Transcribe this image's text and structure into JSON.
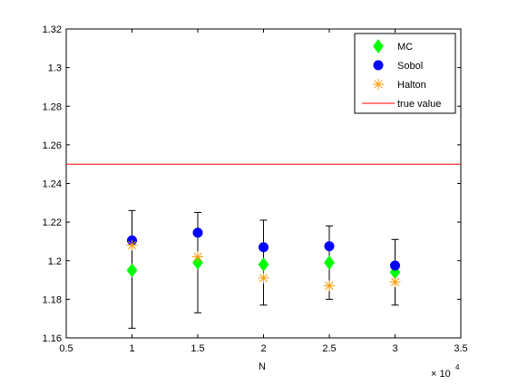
{
  "chart_data": {
    "type": "scatter",
    "xlabel": "N",
    "x_multiplier_label": "× 10",
    "x_multiplier_exponent": "4",
    "xlim": [
      0.5,
      3.5
    ],
    "ylim": [
      1.16,
      1.32
    ],
    "x_ticks": [
      "0.5",
      "1",
      "1.5",
      "2",
      "2.5",
      "3",
      "3.5"
    ],
    "y_ticks": [
      "1.16",
      "1.18",
      "1.2",
      "1.22",
      "1.24",
      "1.26",
      "1.28",
      "1.3",
      "1.32"
    ],
    "grid": false,
    "legend_position": "top-right",
    "error_bars": [
      {
        "x": 1.0,
        "low": 1.165,
        "high": 1.226
      },
      {
        "x": 1.5,
        "low": 1.173,
        "high": 1.225
      },
      {
        "x": 2.0,
        "low": 1.177,
        "high": 1.221
      },
      {
        "x": 2.5,
        "low": 1.18,
        "high": 1.218
      },
      {
        "x": 3.0,
        "low": 1.177,
        "high": 1.211
      }
    ],
    "series": [
      {
        "name": "MC",
        "marker": "diamond",
        "color": "#00ff00",
        "x": [
          1.0,
          1.5,
          2.0,
          2.5,
          3.0
        ],
        "y": [
          1.195,
          1.199,
          1.198,
          1.199,
          1.194
        ]
      },
      {
        "name": "Sobol",
        "marker": "circle",
        "color": "#0000ff",
        "x": [
          1.0,
          1.5,
          2.0,
          2.5,
          3.0
        ],
        "y": [
          1.2105,
          1.2145,
          1.207,
          1.2075,
          1.1975
        ]
      },
      {
        "name": "Halton",
        "marker": "asterisk",
        "color": "#ff9900",
        "x": [
          1.0,
          1.5,
          2.0,
          2.5,
          3.0
        ],
        "y": [
          1.208,
          1.202,
          1.191,
          1.187,
          1.189
        ]
      }
    ],
    "reference_lines": [
      {
        "name": "true value",
        "y": 1.25,
        "color": "#ff0000"
      }
    ]
  }
}
